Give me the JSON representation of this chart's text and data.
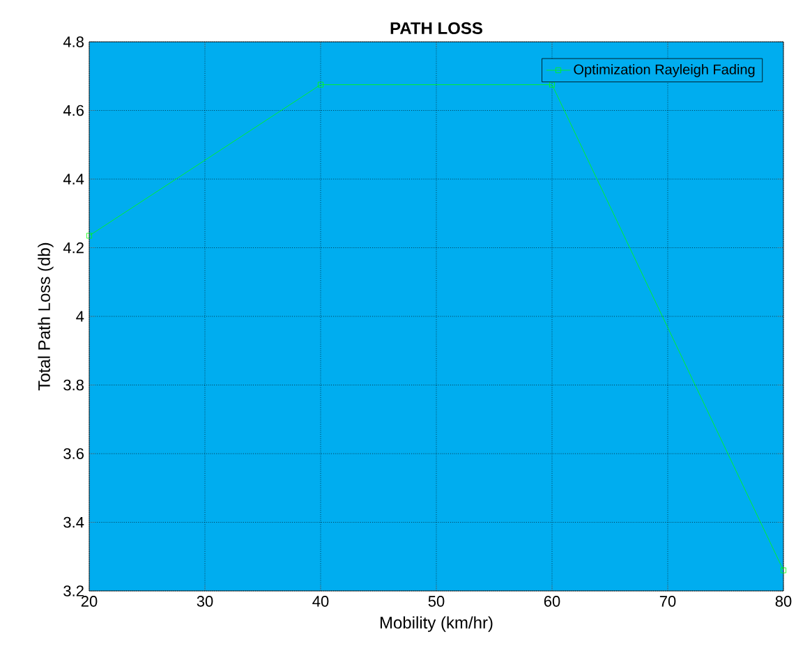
{
  "chart_data": {
    "type": "line",
    "title": "PATH LOSS",
    "xlabel": "Mobility (km/hr)",
    "ylabel": "Total Path Loss (db)",
    "x": [
      20,
      40,
      60,
      80
    ],
    "series": [
      {
        "name": "Optimization Rayleigh Fading",
        "color": "#00ff00",
        "values": [
          4.235,
          4.675,
          4.675,
          3.26
        ]
      }
    ],
    "xlim": [
      20,
      80
    ],
    "ylim": [
      3.2,
      4.8
    ],
    "xticks": [
      20,
      30,
      40,
      50,
      60,
      70,
      80
    ],
    "yticks": [
      3.2,
      3.4,
      3.6,
      3.8,
      4,
      4.2,
      4.4,
      4.6,
      4.8
    ],
    "grid": true,
    "legend": "top right",
    "marker": "square",
    "line_style": "solid"
  }
}
